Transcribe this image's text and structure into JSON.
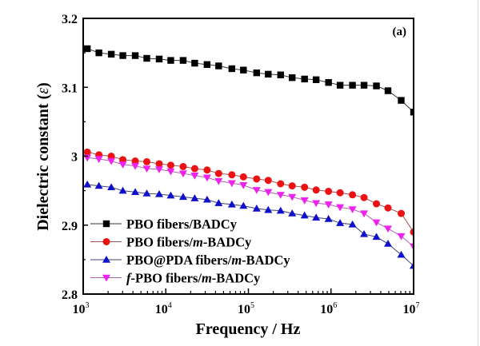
{
  "chart_data": {
    "type": "line",
    "panel_label": "(a)",
    "title": "",
    "xlabel": "Frequency / Hz",
    "ylabel": "Dielectric constant (ε)",
    "ylabel_main": "Dielectric constant (",
    "ylabel_symbol": "ε",
    "ylabel_close": ")",
    "xscale": "log",
    "xlim": [
      1000,
      10000000
    ],
    "ylim": [
      2.8,
      3.2
    ],
    "x_ticks": [
      {
        "base": "10",
        "exp": "3",
        "value": 1000
      },
      {
        "base": "10",
        "exp": "4",
        "value": 10000
      },
      {
        "base": "10",
        "exp": "5",
        "value": 100000
      },
      {
        "base": "10",
        "exp": "6",
        "value": 1000000
      },
      {
        "base": "10",
        "exp": "7",
        "value": 10000000
      }
    ],
    "y_ticks": [
      {
        "label": "2.8",
        "value": 2.8
      },
      {
        "label": "2.9",
        "value": 2.9
      },
      {
        "label": "3",
        "value": 3.0
      },
      {
        "label": "3.1",
        "value": 3.1
      },
      {
        "label": "3.2",
        "value": 3.2
      }
    ],
    "y_minor_ticks": [
      2.85,
      2.95,
      3.05,
      3.15
    ],
    "grid": false,
    "legend_position": "bottom-left",
    "log10_x": [
      3.05,
      3.19,
      3.34,
      3.48,
      3.63,
      3.77,
      3.92,
      4.06,
      4.21,
      4.35,
      4.5,
      4.64,
      4.8,
      4.94,
      5.1,
      5.24,
      5.39,
      5.53,
      5.68,
      5.82,
      5.97,
      6.11,
      6.26,
      6.4,
      6.55,
      6.69,
      6.85,
      7.0
    ],
    "series": [
      {
        "name": "PBO fibers/BADCy",
        "name_parts": [
          {
            "t": "PBO fibers/BADCy",
            "i": false
          }
        ],
        "color": "#000000",
        "line_color": "#333333",
        "marker": "square",
        "values": [
          3.156,
          3.15,
          3.148,
          3.146,
          3.146,
          3.142,
          3.141,
          3.139,
          3.139,
          3.135,
          3.133,
          3.131,
          3.127,
          3.125,
          3.121,
          3.119,
          3.118,
          3.114,
          3.112,
          3.111,
          3.107,
          3.103,
          3.103,
          3.103,
          3.102,
          3.095,
          3.081,
          3.064
        ]
      },
      {
        "name": "PBO fibers/m-BADCy",
        "name_parts": [
          {
            "t": "PBO fibers/",
            "i": false
          },
          {
            "t": "m",
            "i": true
          },
          {
            "t": "-BADCy",
            "i": false
          }
        ],
        "color": "#ee1111",
        "line_color": "#a05050",
        "marker": "circle",
        "values": [
          3.006,
          3.002,
          3.0,
          2.995,
          2.993,
          2.992,
          2.989,
          2.987,
          2.985,
          2.982,
          2.98,
          2.975,
          2.973,
          2.97,
          2.967,
          2.965,
          2.96,
          2.957,
          2.955,
          2.951,
          2.949,
          2.947,
          2.944,
          2.94,
          2.931,
          2.925,
          2.917,
          2.89
        ]
      },
      {
        "name": "PBO@PDA fibers/m-BADCy",
        "name_parts": [
          {
            "t": "PBO@PDA fibers/",
            "i": false
          },
          {
            "t": "m",
            "i": true
          },
          {
            "t": "-BADCy",
            "i": false
          }
        ],
        "color": "#1010cc",
        "line_color": "#404070",
        "marker": "triangle-up",
        "values": [
          2.959,
          2.957,
          2.955,
          2.95,
          2.948,
          2.946,
          2.945,
          2.943,
          2.941,
          2.939,
          2.937,
          2.932,
          2.93,
          2.928,
          2.924,
          2.922,
          2.921,
          2.917,
          2.914,
          2.911,
          2.909,
          2.903,
          2.901,
          2.887,
          2.883,
          2.873,
          2.857,
          2.841
        ]
      },
      {
        "name": "f-PBO fibers/m-BADCy",
        "name_parts": [
          {
            "t": "f",
            "i": true
          },
          {
            "t": "-PBO fibers/",
            "i": false
          },
          {
            "t": "m",
            "i": true
          },
          {
            "t": "-BADCy",
            "i": false
          }
        ],
        "color": "#ee22ee",
        "line_color": "#b060b0",
        "marker": "triangle-down",
        "values": [
          2.998,
          2.996,
          2.993,
          2.988,
          2.986,
          2.982,
          2.981,
          2.978,
          2.975,
          2.972,
          2.969,
          2.964,
          2.961,
          2.958,
          2.951,
          2.948,
          2.944,
          2.941,
          2.936,
          2.932,
          2.93,
          2.926,
          2.923,
          2.917,
          2.904,
          2.895,
          2.884,
          2.869
        ]
      }
    ]
  }
}
